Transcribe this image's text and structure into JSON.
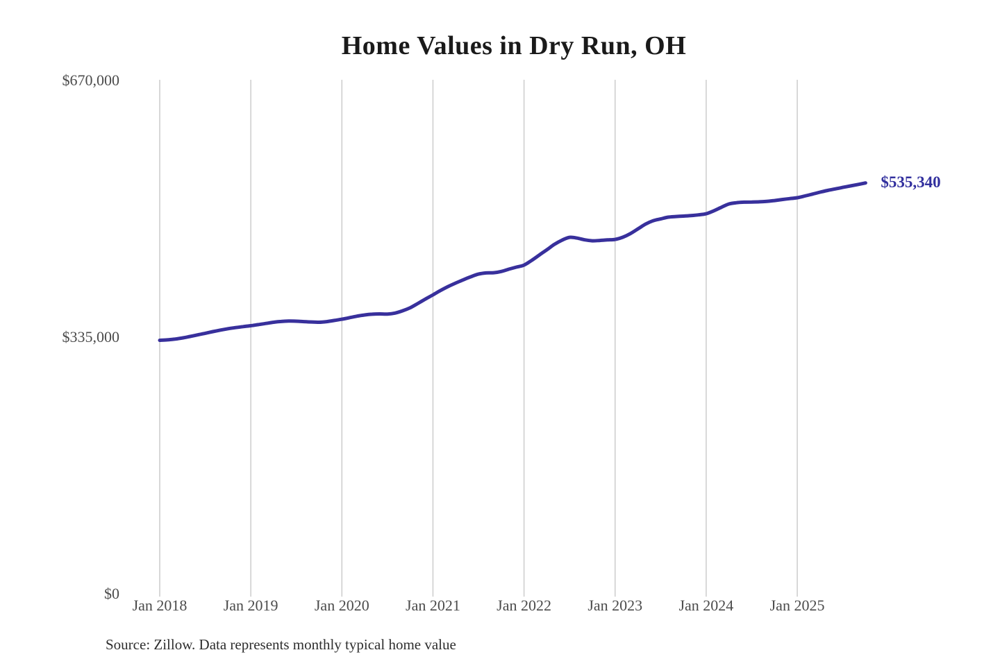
{
  "title": "Home Values in Dry Run, OH",
  "source_note": "Source: Zillow. Data represents monthly typical home value",
  "end_label": "$535,340",
  "colors": {
    "line": "#38309c",
    "end_label": "#32309e",
    "gridline": "#cccccc",
    "axis_text": "#4b4b4b",
    "title_text": "#1a1a1a"
  },
  "chart_data": {
    "type": "line",
    "title": "Home Values in Dry Run, OH",
    "xlabel": "",
    "ylabel": "",
    "ylim": [
      0,
      670000
    ],
    "grid": "vertical-only",
    "legend": "none",
    "frequency": "monthly",
    "x_start": "Jan 2018",
    "x_end": "Oct 2025",
    "x_tick_labels": [
      "Jan 2018",
      "Jan 2019",
      "Jan 2020",
      "Jan 2021",
      "Jan 2022",
      "Jan 2023",
      "Jan 2024",
      "Jan 2025"
    ],
    "y_ticks": [
      {
        "value": 670000,
        "label": "$670,000"
      },
      {
        "value": 335000,
        "label": "$335,000"
      },
      {
        "value": 0,
        "label": "$0"
      }
    ],
    "last_value": 535340,
    "series": [
      {
        "name": "Monthly typical home value",
        "values": [
          330000,
          330600,
          331600,
          333100,
          335000,
          337100,
          339200,
          341300,
          343300,
          345100,
          346600,
          347900,
          349000,
          350500,
          352000,
          353600,
          354600,
          355100,
          354900,
          354400,
          353900,
          353600,
          354400,
          355900,
          357500,
          359500,
          361500,
          363100,
          364100,
          364400,
          364200,
          365500,
          368500,
          372500,
          378000,
          383800,
          389300,
          395000,
          400200,
          404700,
          409000,
          413000,
          416400,
          417900,
          418200,
          419800,
          422800,
          425500,
          428200,
          434200,
          441200,
          448100,
          455200,
          460700,
          464400,
          463400,
          461100,
          459900,
          460300,
          461000,
          461700,
          464500,
          469200,
          475300,
          481600,
          486000,
          488400,
          490700,
          491500,
          492100,
          492700,
          493700,
          495200,
          499000,
          503600,
          507900,
          509600,
          510300,
          510500,
          510700,
          511300,
          512400,
          513700,
          514900,
          516100,
          518300,
          520800,
          523300,
          525600,
          527600,
          529600,
          531500,
          533400,
          535340
        ]
      }
    ]
  }
}
